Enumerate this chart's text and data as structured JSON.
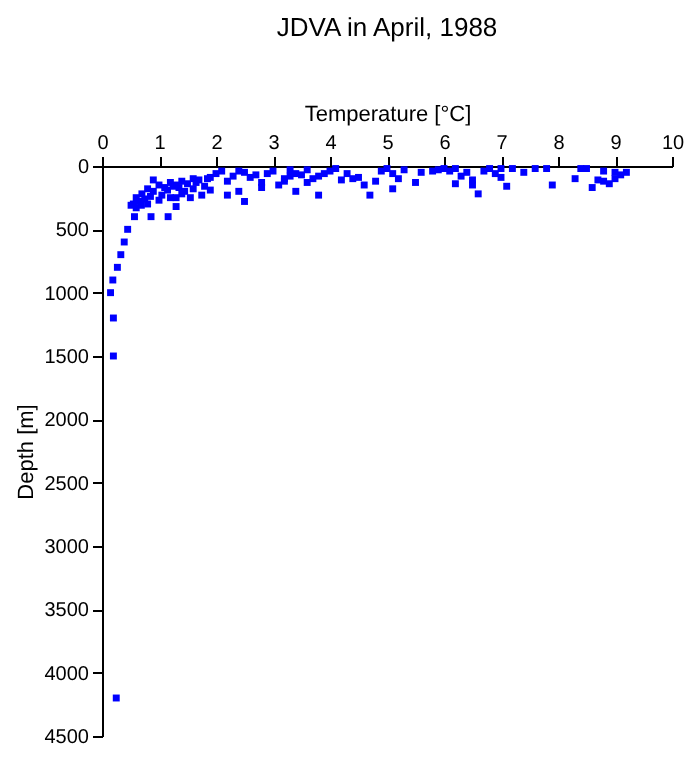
{
  "chart_data": {
    "type": "scatter",
    "title": "JDVA in April, 1988",
    "xlabel": "Temperature [°C]",
    "ylabel": "Depth [m]",
    "xlim": [
      0,
      10
    ],
    "ylim": [
      4500,
      0
    ],
    "xticks": [
      0,
      1,
      2,
      3,
      4,
      5,
      6,
      7,
      8,
      9,
      10
    ],
    "yticks": [
      0,
      500,
      1000,
      1500,
      2000,
      2500,
      3000,
      3500,
      4000,
      4500
    ],
    "marker": "square",
    "grid": false,
    "series": [
      {
        "color": "#0000ff",
        "x": [
          0.25,
          0.2,
          0.2,
          0.15,
          0.19,
          0.27,
          0.33,
          0.39,
          0.45,
          0.57,
          0.86,
          1.16,
          0.51,
          0.69,
          0.6,
          0.7,
          0.8,
          0.9,
          1.0,
          1.1,
          1.2,
          1.3,
          1.4,
          1.5,
          1.6,
          1.7,
          0.55,
          0.65,
          0.75,
          0.85,
          1.3,
          1.05,
          1.15,
          1.25,
          1.35,
          1.45,
          1.55,
          1.65,
          1.75,
          1.85,
          0.6,
          0.8,
          1.0,
          1.2,
          1.4,
          1.6,
          1.8,
          1.9,
          2.0,
          2.1,
          2.2,
          2.3,
          2.4,
          2.5,
          2.6,
          2.7,
          2.8,
          2.9,
          3.0,
          3.1,
          3.2,
          3.3,
          3.4,
          3.5,
          3.6,
          3.7,
          3.8,
          3.9,
          2.2,
          2.5,
          2.8,
          3.2,
          3.4,
          3.6,
          3.8,
          4.0,
          4.1,
          4.2,
          4.3,
          4.5,
          4.6,
          4.7,
          4.8,
          4.9,
          5.0,
          5.1,
          5.2,
          5.3,
          5.5,
          5.6,
          5.8,
          5.9,
          6.0,
          6.1,
          6.2,
          6.3,
          6.4,
          6.5,
          6.6,
          6.7,
          6.8,
          6.9,
          7.0,
          7.1,
          7.2,
          7.4,
          7.6,
          7.8,
          7.9,
          8.3,
          8.5,
          8.6,
          8.7,
          8.8,
          8.9,
          9.0,
          9.1,
          9.2,
          8.4,
          8.8,
          9.0,
          6.5,
          7.0,
          6.2,
          5.1,
          4.4,
          3.3,
          2.4,
          1.9,
          1.3,
          0.9
        ],
        "values": [
          4200,
          1500,
          1200,
          1000,
          900,
          800,
          700,
          600,
          500,
          400,
          400,
          400,
          310,
          310,
          250,
          220,
          180,
          200,
          150,
          170,
          130,
          150,
          120,
          140,
          100,
          110,
          300,
          280,
          260,
          240,
          320,
          230,
          190,
          160,
          170,
          200,
          250,
          130,
          230,
          100,
          330,
          300,
          270,
          250,
          220,
          180,
          160,
          90,
          60,
          40,
          120,
          80,
          200,
          50,
          90,
          70,
          130,
          60,
          40,
          150,
          100,
          30,
          200,
          70,
          30,
          100,
          80,
          60,
          230,
          280,
          170,
          120,
          60,
          130,
          230,
          40,
          20,
          110,
          60,
          90,
          150,
          230,
          120,
          40,
          20,
          60,
          100,
          30,
          130,
          50,
          40,
          30,
          20,
          40,
          20,
          80,
          50,
          110,
          220,
          40,
          20,
          60,
          20,
          160,
          20,
          50,
          20,
          20,
          150,
          100,
          20,
          170,
          110,
          120,
          140,
          100,
          70,
          50,
          20,
          40,
          50,
          150,
          90,
          140,
          180,
          100,
          80,
          40,
          190,
          250,
          110
        ]
      }
    ]
  }
}
